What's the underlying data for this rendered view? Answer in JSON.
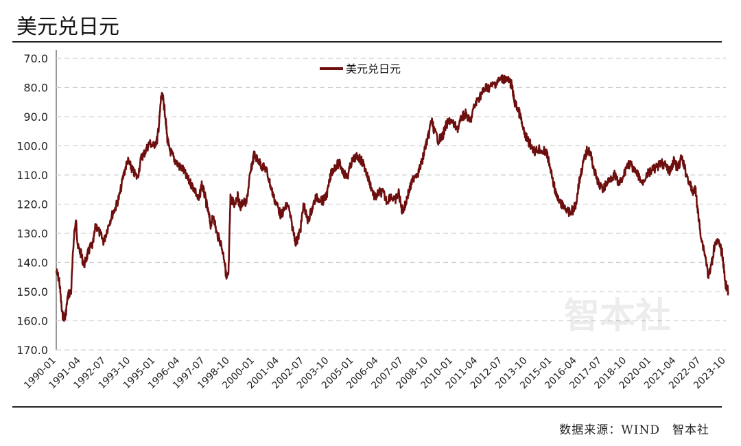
{
  "title": "美元兑日元",
  "source": "数据来源：WIND　智本社",
  "watermark": "智本社",
  "colors": {
    "line": "#6e0f0f",
    "grid": "#d0d0d0",
    "axis": "#333333"
  },
  "chart_data": {
    "type": "line",
    "title": "美元兑日元",
    "y_reversed": true,
    "ylim": [
      70,
      170
    ],
    "ytick_labels": [
      "70.0",
      "80.0",
      "90.0",
      "100.0",
      "110.0",
      "120.0",
      "130.0",
      "140.0",
      "150.0",
      "160.0",
      "170.0"
    ],
    "xtick_labels": [
      "1990-01",
      "1991-04",
      "1992-07",
      "1993-10",
      "1995-01",
      "1996-04",
      "1997-07",
      "1998-10",
      "2000-01",
      "2001-04",
      "2002-07",
      "2003-10",
      "2005-01",
      "2006-04",
      "2007-07",
      "2008-10",
      "2010-01",
      "2011-04",
      "2012-07",
      "2013-10",
      "2015-01",
      "2016-04",
      "2017-07",
      "2018-10",
      "2020-01",
      "2021-04",
      "2022-07",
      "2023-10"
    ],
    "grid": "horizontal-dashed",
    "legend": "top-center",
    "series": [
      {
        "name": "美元兑日元",
        "x": [
          1990.0,
          1990.15,
          1990.3,
          1990.45,
          1990.6,
          1990.75,
          1990.9,
          1991.0,
          1991.1,
          1991.25,
          1991.4,
          1991.55,
          1991.7,
          1991.85,
          1992.0,
          1992.2,
          1992.4,
          1992.6,
          1992.8,
          1993.0,
          1993.2,
          1993.4,
          1993.6,
          1993.75,
          1993.9,
          1994.1,
          1994.3,
          1994.5,
          1994.7,
          1994.9,
          1995.1,
          1995.2,
          1995.3,
          1995.4,
          1995.5,
          1995.6,
          1995.7,
          1995.85,
          1996.0,
          1996.2,
          1996.4,
          1996.6,
          1996.8,
          1997.0,
          1997.2,
          1997.35,
          1997.5,
          1997.65,
          1997.8,
          1997.95,
          1998.1,
          1998.3,
          1998.5,
          1998.6,
          1998.7,
          1998.8,
          1998.9,
          1999.0,
          1999.15,
          1999.3,
          1999.45,
          1999.6,
          1999.75,
          1999.9,
          2000.0,
          2000.2,
          2000.4,
          2000.6,
          2000.8,
          2001.0,
          2001.2,
          2001.35,
          2001.5,
          2001.7,
          2001.9,
          2002.1,
          2002.2,
          2002.35,
          2002.5,
          2002.7,
          2002.9,
          2003.1,
          2003.3,
          2003.5,
          2003.7,
          2003.9,
          2004.1,
          2004.3,
          2004.5,
          2004.7,
          2004.9,
          2005.1,
          2005.3,
          2005.5,
          2005.7,
          2005.9,
          2006.1,
          2006.3,
          2006.5,
          2006.7,
          2006.9,
          2007.1,
          2007.3,
          2007.45,
          2007.6,
          2007.75,
          2007.9,
          2008.1,
          2008.3,
          2008.5,
          2008.65,
          2008.8,
          2008.95,
          2009.1,
          2009.3,
          2009.5,
          2009.7,
          2009.9,
          2010.1,
          2010.3,
          2010.5,
          2010.7,
          2010.9,
          2011.1,
          2011.3,
          2011.5,
          2011.7,
          2011.9,
          2012.1,
          2012.3,
          2012.5,
          2012.7,
          2012.9,
          2013.0,
          2013.15,
          2013.3,
          2013.45,
          2013.6,
          2013.8,
          2014.0,
          2014.2,
          2014.4,
          2014.6,
          2014.75,
          2014.9,
          2015.1,
          2015.3,
          2015.5,
          2015.7,
          2015.9,
          2016.1,
          2016.25,
          2016.4,
          2016.55,
          2016.7,
          2016.85,
          2017.0,
          2017.2,
          2017.4,
          2017.6,
          2017.8,
          2018.0,
          2018.2,
          2018.4,
          2018.6,
          2018.8,
          2019.0,
          2019.2,
          2019.4,
          2019.6,
          2019.8,
          2020.0,
          2020.2,
          2020.4,
          2020.6,
          2020.8,
          2021.0,
          2021.2,
          2021.4,
          2021.6,
          2021.8,
          2022.0,
          2022.15,
          2022.3,
          2022.45,
          2022.6,
          2022.8,
          2022.95,
          2023.1,
          2023.3,
          2023.5,
          2023.65,
          2023.8,
          2023.95
        ],
        "values": [
          143,
          146,
          158,
          159,
          151,
          150,
          130,
          126,
          135,
          137,
          141,
          138,
          135,
          134,
          127,
          130,
          133,
          128,
          124,
          121,
          117,
          110,
          105,
          107,
          109,
          111,
          104,
          102,
          99,
          100,
          98,
          92,
          83,
          84,
          89,
          97,
          101,
          103,
          105,
          107,
          108,
          111,
          113,
          115,
          119,
          113,
          117,
          122,
          127,
          124,
          130,
          133,
          139,
          146,
          144,
          118,
          119,
          120,
          117,
          121,
          119,
          120,
          112,
          106,
          103,
          105,
          107,
          108,
          113,
          118,
          121,
          124,
          122,
          120,
          127,
          133,
          132,
          128,
          120,
          126,
          122,
          118,
          118,
          119,
          116,
          109,
          107,
          106,
          109,
          111,
          106,
          104,
          104,
          106,
          110,
          114,
          118,
          116,
          116,
          119,
          117,
          119,
          116,
          122,
          121,
          117,
          114,
          110,
          109,
          105,
          100,
          97,
          91,
          95,
          98,
          97,
          93,
          91,
          93,
          94,
          90,
          89,
          92,
          87,
          84,
          82,
          80,
          80,
          79,
          78,
          77,
          77,
          78,
          79,
          85,
          87,
          90,
          95,
          98,
          100,
          102,
          101,
          102,
          102,
          106,
          112,
          118,
          120,
          121,
          123,
          122,
          120,
          113,
          108,
          104,
          101,
          103,
          109,
          113,
          115,
          113,
          111,
          110,
          113,
          112,
          107,
          106,
          109,
          110,
          113,
          110,
          109,
          108,
          107,
          106,
          107,
          109,
          105,
          108,
          104,
          109,
          113,
          116,
          115,
          125,
          132,
          138,
          145,
          141,
          132,
          134,
          137,
          147,
          150
        ]
      }
    ]
  }
}
